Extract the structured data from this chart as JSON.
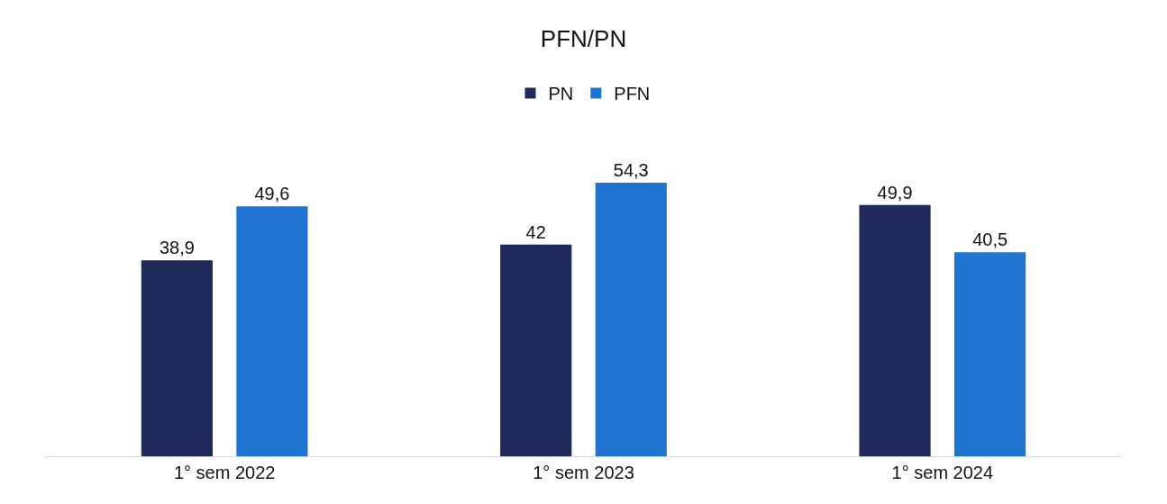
{
  "chart_data": {
    "type": "bar",
    "title": "PFN/PN",
    "categories": [
      "1° sem 2022",
      "1° sem 2023",
      "1° sem 2024"
    ],
    "series": [
      {
        "name": "PN",
        "color": "#1f2a5a",
        "values": [
          38.9,
          42,
          49.9
        ],
        "value_labels": [
          "38,9",
          "42",
          "49,9"
        ]
      },
      {
        "name": "PFN",
        "color": "#1f74d2",
        "values": [
          49.6,
          54.3,
          40.5
        ],
        "value_labels": [
          "49,6",
          "54,3",
          "40,5"
        ]
      }
    ],
    "tick_labels": "x",
    "grid": false,
    "legend": "top"
  }
}
